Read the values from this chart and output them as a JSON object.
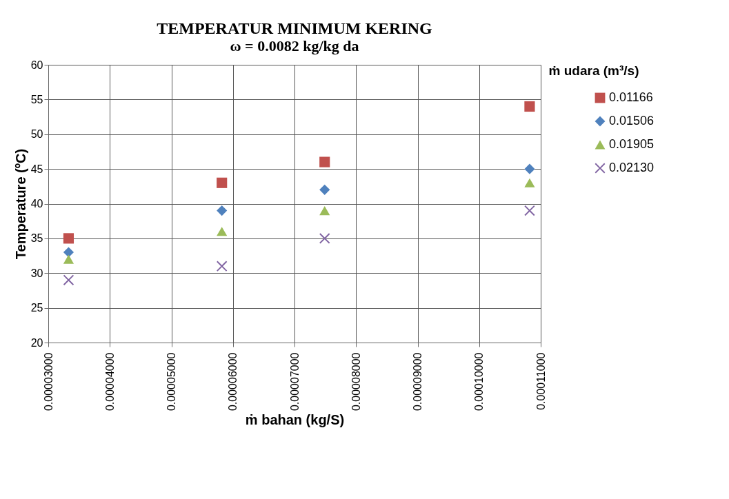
{
  "chart_data": {
    "type": "scatter",
    "title": "TEMPERATUR MINIMUM KERING",
    "subtitle": "ω = 0.0082 kg/kg da",
    "xlabel": "ṁ bahan (kg/S)",
    "ylabel": "Temperature (ºC)",
    "legend_title": "ṁ udara (m³/s)",
    "legend": "right",
    "grid": true,
    "x": [
      3.33e-05,
      5.82e-05,
      7.49e-05,
      0.0001082
    ],
    "series": [
      {
        "name": "0.01166",
        "color": "#c0504d",
        "marker": "square",
        "values": [
          35,
          43,
          46,
          54
        ]
      },
      {
        "name": "0.01506",
        "color": "#4f81bd",
        "marker": "diamond",
        "values": [
          33,
          39,
          42,
          45
        ]
      },
      {
        "name": "0.01905",
        "color": "#9bbb59",
        "marker": "triangle",
        "values": [
          32,
          36,
          39,
          43
        ]
      },
      {
        "name": "0.02130",
        "color": "#8064a2",
        "marker": "cross",
        "values": [
          29,
          31,
          35,
          39
        ]
      }
    ],
    "xlim": [
      3e-05,
      0.00011
    ],
    "xticks": [
      {
        "value": 3e-05,
        "label": "0.00003000"
      },
      {
        "value": 4e-05,
        "label": "0.00004000"
      },
      {
        "value": 5e-05,
        "label": "0.00005000"
      },
      {
        "value": 6e-05,
        "label": "0.00006000"
      },
      {
        "value": 7e-05,
        "label": "0.00007000"
      },
      {
        "value": 8e-05,
        "label": "0.00008000"
      },
      {
        "value": 9e-05,
        "label": "0.00009000"
      },
      {
        "value": 0.0001,
        "label": "0.00010000"
      },
      {
        "value": 0.00011,
        "label": "0.00011000"
      }
    ],
    "ylim": [
      20,
      60
    ],
    "yticks": [
      20,
      25,
      30,
      35,
      40,
      45,
      50,
      55,
      60
    ]
  }
}
